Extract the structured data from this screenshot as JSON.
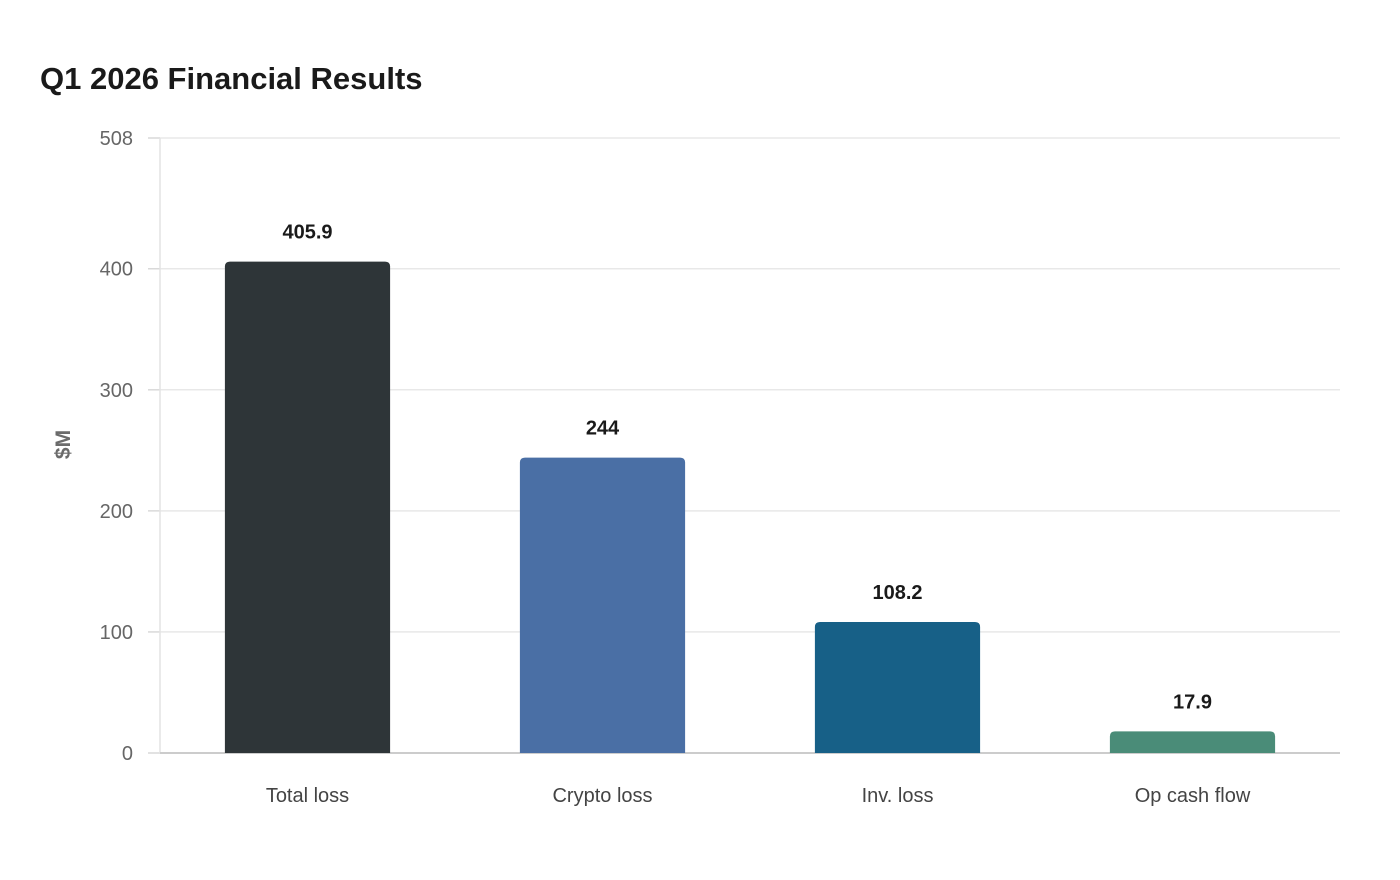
{
  "chart_data": {
    "type": "bar",
    "title": "Q1 2026 Financial Results",
    "xlabel": "",
    "ylabel": "$M",
    "categories": [
      "Total loss",
      "Crypto loss",
      "Inv. loss",
      "Op cash flow"
    ],
    "values": [
      405.9,
      244,
      108.2,
      17.9
    ],
    "value_labels": [
      "405.9",
      "244",
      "108.2",
      "17.9"
    ],
    "colors": [
      "#2e3538",
      "#4a6fa5",
      "#176087",
      "#4a8c78"
    ],
    "ylim": [
      0,
      508
    ],
    "yticks": [
      0,
      100,
      200,
      300,
      400,
      508
    ],
    "grid": true,
    "legend": "none"
  }
}
